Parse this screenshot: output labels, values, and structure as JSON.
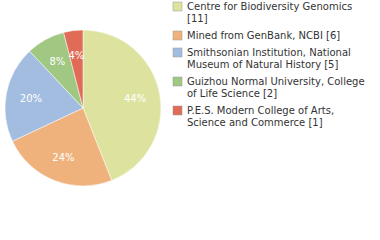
{
  "chart_data": {
    "type": "pie",
    "categories": [
      "Centre for Biodiversity Genomics [11]",
      "Mined from GenBank, NCBI [6]",
      "Smithsonian Institution, National Museum of Natural History [5]",
      "Guizhou Normal University, College of Life Science [2]",
      "P.E.S. Modern College of Arts, Science and Commerce [1]"
    ],
    "values": [
      44,
      24,
      20,
      8,
      4
    ],
    "value_labels": [
      "44%",
      "24%",
      "20%",
      "8%",
      "4%"
    ],
    "colors": [
      "#dde39f",
      "#f0b27c",
      "#a3bde0",
      "#a1c882",
      "#e06c58"
    ],
    "data_labels": true,
    "legend": "right"
  }
}
